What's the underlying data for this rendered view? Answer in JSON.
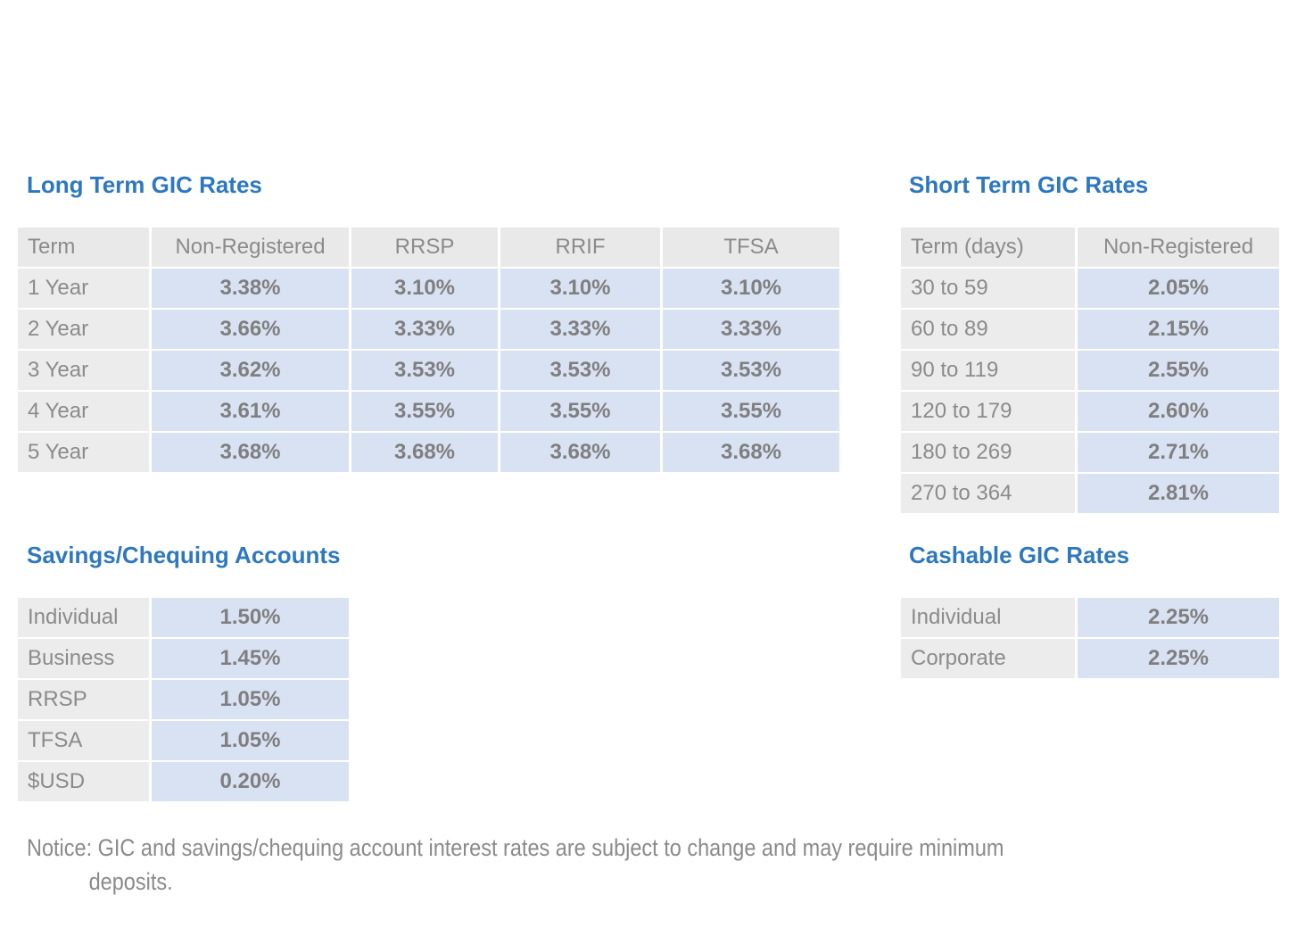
{
  "colors": {
    "title": "#2d78be",
    "header_bg": "#e9e9e9",
    "label_bg": "#ececec",
    "value_bg": "#d9e2f3",
    "label_text": "#8b8b8b",
    "value_text": "#7f7f7f",
    "notice_text": "#8a8a8a",
    "page_bg": "#ffffff"
  },
  "tables": {
    "long_term": {
      "title": "Long Term GIC Rates",
      "headers": [
        "Term",
        "Non-Registered",
        "RRSP",
        "RRIF",
        "TFSA"
      ],
      "rows": [
        {
          "label": "1 Year",
          "values": [
            "3.38%",
            "3.10%",
            "3.10%",
            "3.10%"
          ]
        },
        {
          "label": "2 Year",
          "values": [
            "3.66%",
            "3.33%",
            "3.33%",
            "3.33%"
          ]
        },
        {
          "label": "3 Year",
          "values": [
            "3.62%",
            "3.53%",
            "3.53%",
            "3.53%"
          ]
        },
        {
          "label": "4 Year",
          "values": [
            "3.61%",
            "3.55%",
            "3.55%",
            "3.55%"
          ]
        },
        {
          "label": "5 Year",
          "values": [
            "3.68%",
            "3.68%",
            "3.68%",
            "3.68%"
          ]
        }
      ]
    },
    "short_term": {
      "title": "Short Term GIC Rates",
      "headers": [
        "Term (days)",
        "Non-Registered"
      ],
      "rows": [
        {
          "label": "30 to 59",
          "values": [
            "2.05%"
          ]
        },
        {
          "label": "60 to 89",
          "values": [
            "2.15%"
          ]
        },
        {
          "label": "90 to 119",
          "values": [
            "2.55%"
          ]
        },
        {
          "label": "120 to 179",
          "values": [
            "2.60%"
          ]
        },
        {
          "label": "180 to 269",
          "values": [
            "2.71%"
          ]
        },
        {
          "label": "270 to 364",
          "values": [
            "2.81%"
          ]
        }
      ]
    },
    "savings_chequing": {
      "title": "Savings/Chequing Accounts",
      "headers": [],
      "rows": [
        {
          "label": "Individual",
          "values": [
            "1.50%"
          ]
        },
        {
          "label": "Business",
          "values": [
            "1.45%"
          ]
        },
        {
          "label": "RRSP",
          "values": [
            "1.05%"
          ]
        },
        {
          "label": "TFSA",
          "values": [
            "1.05%"
          ]
        },
        {
          "label": "$USD",
          "values": [
            "0.20%"
          ]
        }
      ]
    },
    "cashable": {
      "title": "Cashable GIC Rates",
      "headers": [],
      "rows": [
        {
          "label": "Individual",
          "values": [
            "2.25%"
          ]
        },
        {
          "label": "Corporate",
          "values": [
            "2.25%"
          ]
        }
      ]
    }
  },
  "notice": {
    "lines": [
      "Notice: GIC and savings/chequing account interest rates are subject to change and may require minimum",
      "deposits."
    ]
  }
}
